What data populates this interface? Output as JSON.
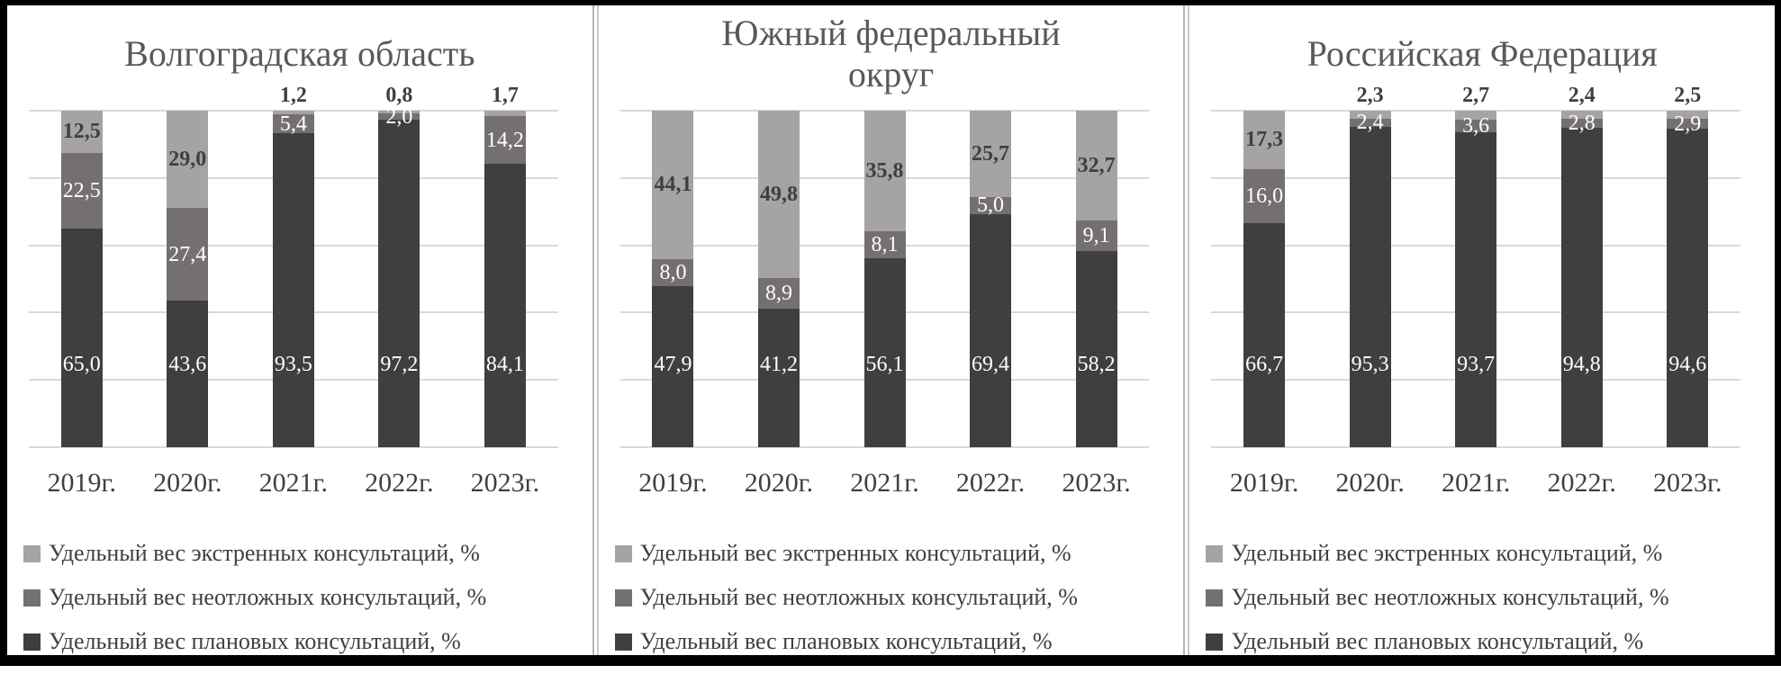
{
  "figure": {
    "description_labels": {
      "years_suffix": "г."
    },
    "colors": {
      "planned": "#3f3f3f",
      "urgent": "#757070",
      "emergency": "#a6a3a3",
      "gridline": "#d9d9d9",
      "title_text": "#595959",
      "axis_text": "#3f3f3f",
      "frame": "#000000"
    }
  },
  "chart_data": [
    {
      "type": "bar",
      "stacked": true,
      "title": "Волгоградская область",
      "title_display": "Волгоградская область",
      "categories": [
        "2019г.",
        "2020г.",
        "2021г.",
        "2022г.",
        "2023г."
      ],
      "ylim": [
        0,
        100
      ],
      "gridline_step": 20,
      "grid": true,
      "legend_position": "bottom",
      "series": [
        {
          "name": "Удельный вес плановых консультаций, %",
          "key": "planned",
          "color": "#3f3f3f",
          "values": [
            65.0,
            43.6,
            93.5,
            97.2,
            84.1
          ],
          "labels": [
            "65,0",
            "43,6",
            "93,5",
            "97,2",
            "84,1"
          ]
        },
        {
          "name": "Удельный вес неотложных консультаций, %",
          "key": "urgent",
          "color": "#757070",
          "values": [
            22.5,
            27.4,
            5.4,
            2.0,
            14.2
          ],
          "labels": [
            "22,5",
            "27,4",
            "5,4",
            "2,0",
            "14,2"
          ]
        },
        {
          "name": "Удельный вес экстренных консультаций, %",
          "key": "emergency",
          "color": "#a6a3a3",
          "values": [
            12.5,
            29.0,
            1.2,
            0.8,
            1.7
          ],
          "labels": [
            "12,5",
            "29,0",
            "1,2",
            "0,8",
            "1,7"
          ],
          "label_position": [
            "inside",
            "inside",
            "above",
            "above",
            "above"
          ]
        }
      ],
      "legend": [
        {
          "label": "Удельный вес экстренных консультаций, %",
          "color": "#a6a3a3"
        },
        {
          "label": "Удельный вес неотложных консультаций, %",
          "color": "#757070"
        },
        {
          "label": "Удельный вес плановых консультаций, %",
          "color": "#3f3f3f"
        }
      ]
    },
    {
      "type": "bar",
      "stacked": true,
      "title": "Южный федеральный округ",
      "title_display": "Южный федеральный\nокруг",
      "categories": [
        "2019г.",
        "2020г.",
        "2021г.",
        "2022г.",
        "2023г."
      ],
      "ylim": [
        0,
        100
      ],
      "gridline_step": 20,
      "grid": true,
      "legend_position": "bottom",
      "series": [
        {
          "name": "Удельный вес плановых консультаций, %",
          "key": "planned",
          "color": "#3f3f3f",
          "values": [
            47.9,
            41.2,
            56.1,
            69.4,
            58.2
          ],
          "labels": [
            "47,9",
            "41,2",
            "56,1",
            "69,4",
            "58,2"
          ]
        },
        {
          "name": "Удельный вес неотложных консультаций, %",
          "key": "urgent",
          "color": "#757070",
          "values": [
            8.0,
            8.9,
            8.1,
            5.0,
            9.1
          ],
          "labels": [
            "8,0",
            "8,9",
            "8,1",
            "5,0",
            "9,1"
          ]
        },
        {
          "name": "Удельный вес экстренных консультаций, %",
          "key": "emergency",
          "color": "#a6a3a3",
          "values": [
            44.1,
            49.8,
            35.8,
            25.7,
            32.7
          ],
          "labels": [
            "44,1",
            "49,8",
            "35,8",
            "25,7",
            "32,7"
          ],
          "label_position": [
            "inside",
            "inside",
            "inside",
            "inside",
            "inside"
          ]
        }
      ],
      "legend": [
        {
          "label": "Удельный вес экстренных консультаций, %",
          "color": "#a6a3a3"
        },
        {
          "label": "Удельный вес неотложных консультаций, %",
          "color": "#757070"
        },
        {
          "label": "Удельный вес плановых консультаций, %",
          "color": "#3f3f3f"
        }
      ]
    },
    {
      "type": "bar",
      "stacked": true,
      "title": "Российская Федерация",
      "title_display": "Российская Федерация",
      "categories": [
        "2019г.",
        "2020г.",
        "2021г.",
        "2022г.",
        "2023г."
      ],
      "ylim": [
        0,
        100
      ],
      "gridline_step": 20,
      "grid": true,
      "legend_position": "bottom",
      "series": [
        {
          "name": "Удельный вес плановых консультаций, %",
          "key": "planned",
          "color": "#3f3f3f",
          "values": [
            66.7,
            95.3,
            93.7,
            94.8,
            94.6
          ],
          "labels": [
            "66,7",
            "95,3",
            "93,7",
            "94,8",
            "94,6"
          ]
        },
        {
          "name": "Удельный вес неотложных консультаций, %",
          "key": "urgent",
          "color": "#757070",
          "values": [
            16.0,
            2.4,
            3.6,
            2.8,
            2.9
          ],
          "labels": [
            "16,0",
            "2,4",
            "3,6",
            "2,8",
            "2,9"
          ]
        },
        {
          "name": "Удельный вес экстренных консультаций, %",
          "key": "emergency",
          "color": "#a6a3a3",
          "values": [
            17.3,
            2.3,
            2.7,
            2.4,
            2.5
          ],
          "labels": [
            "17,3",
            "2,3",
            "2,7",
            "2,4",
            "2,5"
          ],
          "label_position": [
            "inside",
            "above",
            "above",
            "above",
            "above"
          ]
        }
      ],
      "legend": [
        {
          "label": "Удельный вес экстренных консультаций, %",
          "color": "#a6a3a3"
        },
        {
          "label": "Удельный вес неотложных консультаций, %",
          "color": "#757070"
        },
        {
          "label": "Удельный вес плановых консультаций, %",
          "color": "#3f3f3f"
        }
      ]
    }
  ]
}
